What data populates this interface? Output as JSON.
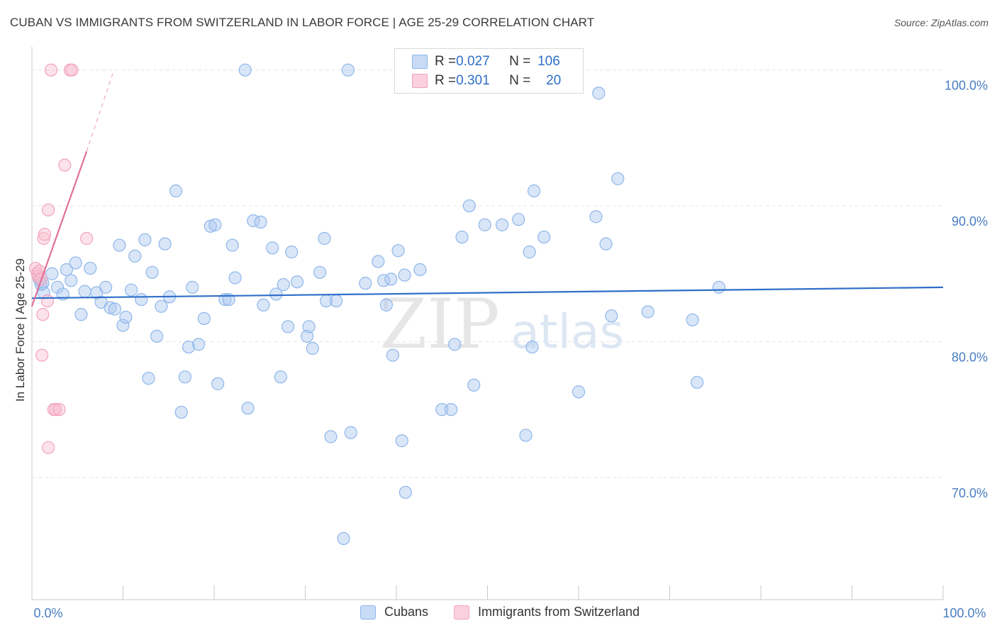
{
  "title": "CUBAN VS IMMIGRANTS FROM SWITZERLAND IN LABOR FORCE | AGE 25-29 CORRELATION CHART",
  "source": "Source: ZipAtlas.com",
  "watermark": {
    "zip": "ZIP",
    "atlas": "atlas"
  },
  "legend_top": {
    "rows": [
      {
        "r_label": "R = ",
        "r_value": "0.027",
        "n_label": "N = ",
        "n_value": "106",
        "color": "#8fb6ea"
      },
      {
        "r_label": "R = ",
        "r_value": "0.301",
        "n_label": "N = ",
        "n_value": "20",
        "color": "#f2a3bd"
      }
    ]
  },
  "legend_bottom": {
    "cubans": "Cubans",
    "swiss": "Immigrants from Switzerland"
  },
  "chart_data": {
    "type": "scatter",
    "xlabel": "",
    "ylabel": "In Labor Force | Age 25-29",
    "xlim": [
      0,
      100
    ],
    "ylim": [
      61,
      101.5
    ],
    "x_tick_labels": [
      "0.0%",
      "100.0%"
    ],
    "y_ticks": [
      70,
      80,
      90,
      100
    ],
    "y_tick_labels": [
      "70.0%",
      "80.0%",
      "90.0%",
      "100.0%"
    ],
    "series": [
      {
        "name": "Cubans",
        "color": "#8fb6ea",
        "trend": {
          "x": [
            0,
            100
          ],
          "y": [
            83.2,
            84.0
          ]
        },
        "points": [
          [
            0.8,
            84.6
          ],
          [
            1.0,
            84.2
          ],
          [
            1.2,
            84.3
          ],
          [
            1.3,
            83.6
          ],
          [
            2.2,
            85.0
          ],
          [
            2.8,
            84.0
          ],
          [
            3.4,
            83.5
          ],
          [
            3.8,
            85.3
          ],
          [
            4.3,
            84.5
          ],
          [
            4.8,
            85.8
          ],
          [
            5.4,
            82.0
          ],
          [
            5.8,
            83.7
          ],
          [
            6.4,
            85.4
          ],
          [
            7.1,
            83.6
          ],
          [
            7.6,
            82.9
          ],
          [
            8.1,
            84.0
          ],
          [
            8.6,
            82.5
          ],
          [
            9.1,
            82.4
          ],
          [
            9.6,
            87.1
          ],
          [
            10.0,
            81.2
          ],
          [
            10.3,
            81.8
          ],
          [
            10.9,
            83.8
          ],
          [
            11.3,
            86.3
          ],
          [
            12.0,
            83.1
          ],
          [
            12.4,
            87.5
          ],
          [
            12.8,
            77.3
          ],
          [
            13.2,
            85.1
          ],
          [
            13.7,
            80.4
          ],
          [
            14.2,
            82.6
          ],
          [
            14.6,
            87.2
          ],
          [
            15.1,
            83.3
          ],
          [
            15.8,
            91.1
          ],
          [
            16.4,
            74.8
          ],
          [
            16.8,
            77.4
          ],
          [
            17.2,
            79.6
          ],
          [
            17.6,
            84.0
          ],
          [
            18.3,
            79.8
          ],
          [
            18.9,
            81.7
          ],
          [
            19.6,
            88.5
          ],
          [
            20.1,
            88.6
          ],
          [
            20.4,
            76.9
          ],
          [
            21.2,
            83.1
          ],
          [
            21.6,
            83.1
          ],
          [
            22.0,
            87.1
          ],
          [
            22.3,
            84.7
          ],
          [
            23.4,
            100.0
          ],
          [
            23.7,
            75.1
          ],
          [
            24.3,
            88.9
          ],
          [
            25.1,
            88.8
          ],
          [
            25.4,
            82.7
          ],
          [
            26.4,
            86.9
          ],
          [
            26.8,
            83.5
          ],
          [
            27.3,
            77.4
          ],
          [
            27.6,
            84.2
          ],
          [
            28.1,
            81.1
          ],
          [
            28.5,
            86.6
          ],
          [
            29.1,
            84.4
          ],
          [
            30.2,
            80.4
          ],
          [
            30.4,
            81.1
          ],
          [
            30.8,
            79.5
          ],
          [
            31.6,
            85.1
          ],
          [
            32.1,
            87.6
          ],
          [
            32.3,
            83.0
          ],
          [
            32.8,
            73.0
          ],
          [
            33.4,
            83.0
          ],
          [
            34.2,
            65.5
          ],
          [
            34.7,
            100.0
          ],
          [
            35.0,
            73.3
          ],
          [
            36.6,
            84.3
          ],
          [
            38.0,
            85.9
          ],
          [
            38.6,
            84.5
          ],
          [
            38.9,
            82.7
          ],
          [
            39.4,
            84.6
          ],
          [
            39.6,
            79.0
          ],
          [
            40.2,
            86.7
          ],
          [
            40.6,
            72.7
          ],
          [
            40.9,
            84.9
          ],
          [
            41.0,
            68.9
          ],
          [
            42.6,
            85.3
          ],
          [
            45.0,
            75.0
          ],
          [
            46.0,
            75.0
          ],
          [
            46.4,
            79.8
          ],
          [
            47.2,
            87.7
          ],
          [
            48.0,
            90.0
          ],
          [
            48.5,
            76.8
          ],
          [
            49.7,
            88.6
          ],
          [
            51.6,
            88.6
          ],
          [
            53.4,
            89.0
          ],
          [
            54.2,
            73.1
          ],
          [
            54.6,
            86.6
          ],
          [
            54.9,
            79.6
          ],
          [
            55.1,
            91.1
          ],
          [
            56.2,
            87.7
          ],
          [
            60.0,
            76.3
          ],
          [
            61.9,
            89.2
          ],
          [
            62.2,
            98.3
          ],
          [
            63.0,
            87.2
          ],
          [
            63.6,
            81.9
          ],
          [
            64.3,
            92.0
          ],
          [
            67.6,
            82.2
          ],
          [
            73.0,
            77.0
          ],
          [
            72.5,
            81.6
          ],
          [
            75.4,
            84.0
          ]
        ]
      },
      {
        "name": "Immigrants from Switzerland",
        "color": "#f2a3bd",
        "trend": {
          "x": [
            0,
            6.0
          ],
          "y": [
            82.6,
            94.0
          ]
        },
        "trend_ext": {
          "x": [
            6.0,
            9.0
          ],
          "y": [
            94.0,
            100.0
          ]
        },
        "points": [
          [
            0.4,
            85.4
          ],
          [
            0.6,
            85.0
          ],
          [
            0.7,
            84.8
          ],
          [
            0.8,
            85.2
          ],
          [
            1.0,
            84.6
          ],
          [
            1.1,
            79.0
          ],
          [
            1.2,
            82.0
          ],
          [
            1.3,
            87.6
          ],
          [
            1.4,
            87.9
          ],
          [
            1.7,
            83.0
          ],
          [
            1.8,
            72.2
          ],
          [
            1.8,
            89.7
          ],
          [
            2.1,
            100.0
          ],
          [
            2.4,
            75.0
          ],
          [
            2.6,
            75.0
          ],
          [
            3.0,
            75.0
          ],
          [
            4.2,
            100.0
          ],
          [
            4.4,
            100.0
          ],
          [
            3.6,
            93.0
          ],
          [
            6.0,
            87.6
          ]
        ]
      }
    ]
  }
}
